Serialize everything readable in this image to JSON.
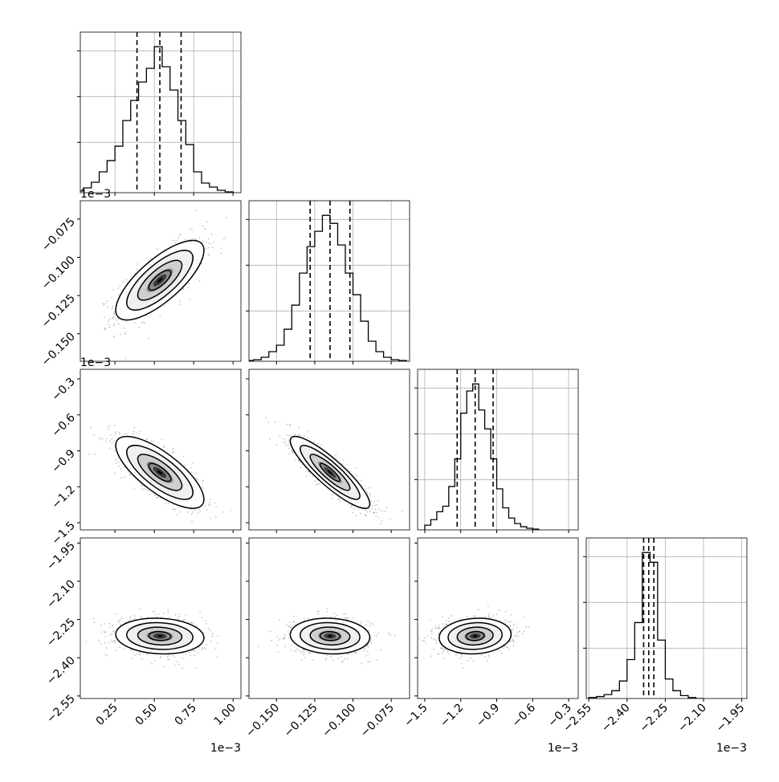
{
  "chart_data": {
    "type": "corner",
    "parameters": 4,
    "axis_ranges": [
      [
        0.03,
        1.05
      ],
      [
        -0.168,
        -0.063
      ],
      [
        -1.56,
        -0.22
      ],
      [
        -2.56,
        -1.93
      ]
    ],
    "tick_values": [
      [
        0.25,
        0.5,
        0.75,
        1.0
      ],
      [
        -0.15,
        -0.125,
        -0.1,
        -0.075
      ],
      [
        -1.5,
        -1.2,
        -0.9,
        -0.6,
        -0.3
      ],
      [
        -2.55,
        -2.4,
        -2.25,
        -2.1,
        -1.95
      ]
    ],
    "tick_labels": [
      [
        "0.25",
        "0.50",
        "0.75",
        "1.00"
      ],
      [
        "−0.150",
        "−0.125",
        "−0.100",
        "−0.075"
      ],
      [
        "−1.5",
        "−1.2",
        "−0.9",
        "−0.6",
        "−0.3"
      ],
      [
        "−2.55",
        "−2.40",
        "−2.25",
        "−2.10",
        "−1.95"
      ]
    ],
    "offset_labels": [
      "1e−3",
      "",
      "1e−3",
      "1e−3"
    ],
    "row_offset_labels": [
      "",
      "1e−3",
      "1e−3",
      ""
    ],
    "quantiles": [
      [
        0.39,
        0.535,
        0.67
      ],
      [
        -0.128,
        -0.115,
        -0.102
      ],
      [
        -1.23,
        -1.08,
        -0.93
      ],
      [
        -2.335,
        -2.315,
        -2.295
      ]
    ],
    "histograms": [
      {
        "bins": [
          0.0,
          0.05,
          0.1,
          0.15,
          0.2,
          0.25,
          0.3,
          0.35,
          0.4,
          0.45,
          0.5,
          0.55,
          0.6,
          0.65,
          0.7,
          0.75,
          0.8,
          0.85,
          0.9,
          0.95,
          1.0
        ],
        "counts": [
          2,
          6,
          13,
          26,
          40,
          58,
          90,
          115,
          138,
          155,
          182,
          157,
          128,
          90,
          60,
          26,
          12,
          7,
          3,
          1
        ]
      },
      {
        "bins": [
          -0.17,
          -0.165,
          -0.16,
          -0.155,
          -0.15,
          -0.145,
          -0.14,
          -0.135,
          -0.13,
          -0.125,
          -0.12,
          -0.115,
          -0.11,
          -0.105,
          -0.1,
          -0.095,
          -0.09,
          -0.085,
          -0.08,
          -0.075,
          -0.07,
          -0.065
        ],
        "counts": [
          1,
          2,
          5,
          12,
          20,
          40,
          70,
          110,
          143,
          162,
          182,
          172,
          145,
          110,
          83,
          50,
          25,
          12,
          5,
          2,
          1
        ]
      },
      {
        "bins": [
          -1.5,
          -1.45,
          -1.4,
          -1.35,
          -1.3,
          -1.25,
          -1.2,
          -1.15,
          -1.1,
          -1.05,
          -1.0,
          -0.95,
          -0.9,
          -0.85,
          -0.8,
          -0.75,
          -0.7,
          -0.65,
          -0.6,
          -0.55
        ],
        "counts": [
          6,
          13,
          23,
          30,
          55,
          90,
          148,
          176,
          185,
          152,
          128,
          90,
          52,
          28,
          15,
          8,
          4,
          2,
          1
        ]
      },
      {
        "bins": [
          -2.55,
          -2.52,
          -2.49,
          -2.46,
          -2.43,
          -2.4,
          -2.37,
          -2.34,
          -2.31,
          -2.28,
          -2.25,
          -2.22,
          -2.19,
          -2.16,
          -2.13,
          -2.1
        ],
        "counts": [
          1,
          2,
          4,
          8,
          18,
          40,
          78,
          150,
          140,
          60,
          20,
          8,
          3,
          1,
          0
        ]
      }
    ],
    "gaussian": {
      "means": [
        0.535,
        -0.115,
        -1.08,
        -2.315
      ],
      "sigmas": [
        0.14,
        0.013,
        0.15,
        0.035
      ],
      "correlations": [
        [
          1.0,
          0.75,
          -0.75,
          -0.1
        ],
        [
          0.75,
          1.0,
          -0.88,
          -0.08
        ],
        [
          -0.75,
          -0.88,
          1.0,
          0.1
        ],
        [
          -0.1,
          -0.08,
          0.1,
          1.0
        ]
      ]
    },
    "colors": {
      "line": "#000000",
      "grid": "#b0b0b0",
      "scatter": "#808080"
    },
    "grid": true
  }
}
